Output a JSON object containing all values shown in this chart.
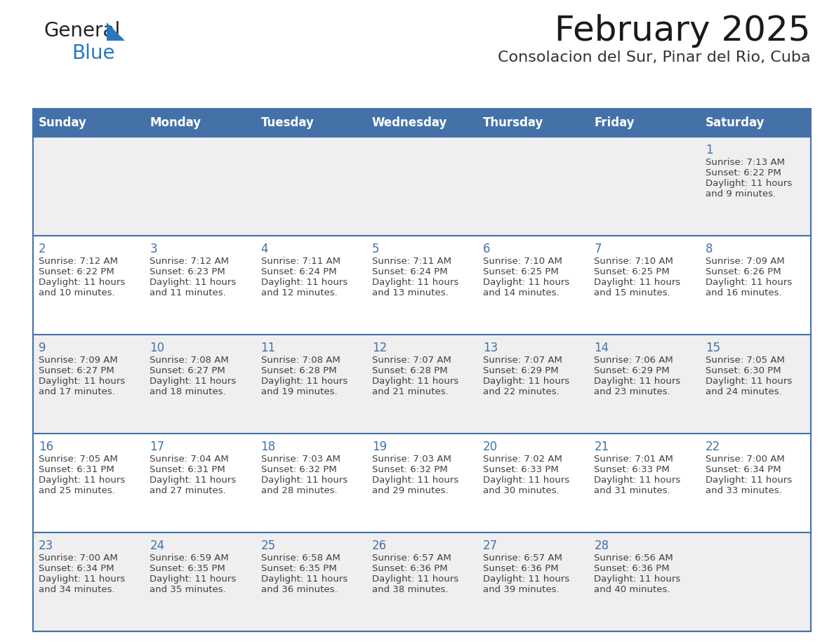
{
  "title": "February 2025",
  "subtitle": "Consolacion del Sur, Pinar del Rio, Cuba",
  "days_of_week": [
    "Sunday",
    "Monday",
    "Tuesday",
    "Wednesday",
    "Thursday",
    "Friday",
    "Saturday"
  ],
  "header_bg": "#4472a8",
  "header_text": "#ffffff",
  "row_bg_odd": "#efefef",
  "row_bg_even": "#ffffff",
  "cell_border": "#4472a8",
  "day_num_color": "#4472a8",
  "text_color": "#404040",
  "logo_text_color": "#222222",
  "logo_blue_color": "#2878be",
  "calendar_data": [
    [
      null,
      null,
      null,
      null,
      null,
      null,
      {
        "day": 1,
        "sunrise": "7:13 AM",
        "sunset": "6:22 PM",
        "daylight": "11 hours and 9 minutes."
      }
    ],
    [
      {
        "day": 2,
        "sunrise": "7:12 AM",
        "sunset": "6:22 PM",
        "daylight": "11 hours and 10 minutes."
      },
      {
        "day": 3,
        "sunrise": "7:12 AM",
        "sunset": "6:23 PM",
        "daylight": "11 hours and 11 minutes."
      },
      {
        "day": 4,
        "sunrise": "7:11 AM",
        "sunset": "6:24 PM",
        "daylight": "11 hours and 12 minutes."
      },
      {
        "day": 5,
        "sunrise": "7:11 AM",
        "sunset": "6:24 PM",
        "daylight": "11 hours and 13 minutes."
      },
      {
        "day": 6,
        "sunrise": "7:10 AM",
        "sunset": "6:25 PM",
        "daylight": "11 hours and 14 minutes."
      },
      {
        "day": 7,
        "sunrise": "7:10 AM",
        "sunset": "6:25 PM",
        "daylight": "11 hours and 15 minutes."
      },
      {
        "day": 8,
        "sunrise": "7:09 AM",
        "sunset": "6:26 PM",
        "daylight": "11 hours and 16 minutes."
      }
    ],
    [
      {
        "day": 9,
        "sunrise": "7:09 AM",
        "sunset": "6:27 PM",
        "daylight": "11 hours and 17 minutes."
      },
      {
        "day": 10,
        "sunrise": "7:08 AM",
        "sunset": "6:27 PM",
        "daylight": "11 hours and 18 minutes."
      },
      {
        "day": 11,
        "sunrise": "7:08 AM",
        "sunset": "6:28 PM",
        "daylight": "11 hours and 19 minutes."
      },
      {
        "day": 12,
        "sunrise": "7:07 AM",
        "sunset": "6:28 PM",
        "daylight": "11 hours and 21 minutes."
      },
      {
        "day": 13,
        "sunrise": "7:07 AM",
        "sunset": "6:29 PM",
        "daylight": "11 hours and 22 minutes."
      },
      {
        "day": 14,
        "sunrise": "7:06 AM",
        "sunset": "6:29 PM",
        "daylight": "11 hours and 23 minutes."
      },
      {
        "day": 15,
        "sunrise": "7:05 AM",
        "sunset": "6:30 PM",
        "daylight": "11 hours and 24 minutes."
      }
    ],
    [
      {
        "day": 16,
        "sunrise": "7:05 AM",
        "sunset": "6:31 PM",
        "daylight": "11 hours and 25 minutes."
      },
      {
        "day": 17,
        "sunrise": "7:04 AM",
        "sunset": "6:31 PM",
        "daylight": "11 hours and 27 minutes."
      },
      {
        "day": 18,
        "sunrise": "7:03 AM",
        "sunset": "6:32 PM",
        "daylight": "11 hours and 28 minutes."
      },
      {
        "day": 19,
        "sunrise": "7:03 AM",
        "sunset": "6:32 PM",
        "daylight": "11 hours and 29 minutes."
      },
      {
        "day": 20,
        "sunrise": "7:02 AM",
        "sunset": "6:33 PM",
        "daylight": "11 hours and 30 minutes."
      },
      {
        "day": 21,
        "sunrise": "7:01 AM",
        "sunset": "6:33 PM",
        "daylight": "11 hours and 31 minutes."
      },
      {
        "day": 22,
        "sunrise": "7:00 AM",
        "sunset": "6:34 PM",
        "daylight": "11 hours and 33 minutes."
      }
    ],
    [
      {
        "day": 23,
        "sunrise": "7:00 AM",
        "sunset": "6:34 PM",
        "daylight": "11 hours and 34 minutes."
      },
      {
        "day": 24,
        "sunrise": "6:59 AM",
        "sunset": "6:35 PM",
        "daylight": "11 hours and 35 minutes."
      },
      {
        "day": 25,
        "sunrise": "6:58 AM",
        "sunset": "6:35 PM",
        "daylight": "11 hours and 36 minutes."
      },
      {
        "day": 26,
        "sunrise": "6:57 AM",
        "sunset": "6:36 PM",
        "daylight": "11 hours and 38 minutes."
      },
      {
        "day": 27,
        "sunrise": "6:57 AM",
        "sunset": "6:36 PM",
        "daylight": "11 hours and 39 minutes."
      },
      {
        "day": 28,
        "sunrise": "6:56 AM",
        "sunset": "6:36 PM",
        "daylight": "11 hours and 40 minutes."
      },
      null
    ]
  ]
}
